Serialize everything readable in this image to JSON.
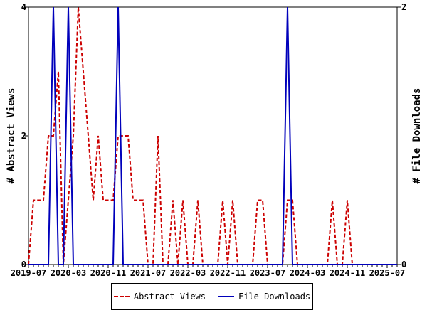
{
  "chart_data": {
    "type": "line",
    "title": "",
    "xlabel": "",
    "ylabel_left": "# Abstract Views",
    "ylabel_right": "# File Downloads",
    "ylim_left": [
      0,
      4
    ],
    "ylim_right": [
      0,
      2
    ],
    "yticks_left": [
      "0",
      "2",
      "4"
    ],
    "yticks_right": [
      "0",
      "2"
    ],
    "x_start": "2019-07",
    "x_step": "monthly",
    "xtick_labels": [
      "2019-07",
      "2020-03",
      "2020-11",
      "2021-07",
      "2022-03",
      "2022-11",
      "2023-07",
      "2024-03",
      "2024-11",
      "2025-07"
    ],
    "series": [
      {
        "name": "Abstract Views",
        "axis": "left",
        "color": "#cc0000",
        "style": "dashed",
        "values": [
          0,
          1,
          1,
          1,
          2,
          2,
          3,
          0,
          1,
          2,
          4,
          3,
          2,
          1,
          2,
          1,
          1,
          1,
          2,
          2,
          2,
          1,
          1,
          1,
          0,
          0,
          2,
          0,
          0,
          1,
          0,
          1,
          0,
          0,
          1,
          0,
          0,
          0,
          0,
          1,
          0,
          1,
          0,
          0,
          0,
          0,
          1,
          1,
          0,
          0,
          0,
          0,
          1,
          1,
          0,
          0,
          0,
          0,
          0,
          0,
          0,
          1,
          0,
          0,
          1,
          0,
          0,
          0,
          0,
          0,
          0,
          0,
          0,
          0,
          0
        ]
      },
      {
        "name": "File Downloads",
        "axis": "right",
        "color": "#0000bb",
        "style": "solid",
        "values": [
          0,
          0,
          0,
          0,
          0,
          2,
          0,
          0,
          2,
          0,
          0,
          0,
          0,
          0,
          0,
          0,
          0,
          0,
          2,
          0,
          0,
          0,
          0,
          0,
          0,
          0,
          0,
          0,
          0,
          0,
          0,
          0,
          0,
          0,
          0,
          0,
          0,
          0,
          0,
          0,
          0,
          0,
          0,
          0,
          0,
          0,
          0,
          0,
          0,
          0,
          0,
          0,
          2,
          0,
          0,
          0,
          0,
          0,
          0,
          0,
          0,
          0,
          0,
          0,
          0,
          0,
          0,
          0,
          0,
          0,
          0,
          0,
          0,
          0,
          0
        ]
      }
    ],
    "legend_position": "bottom"
  }
}
